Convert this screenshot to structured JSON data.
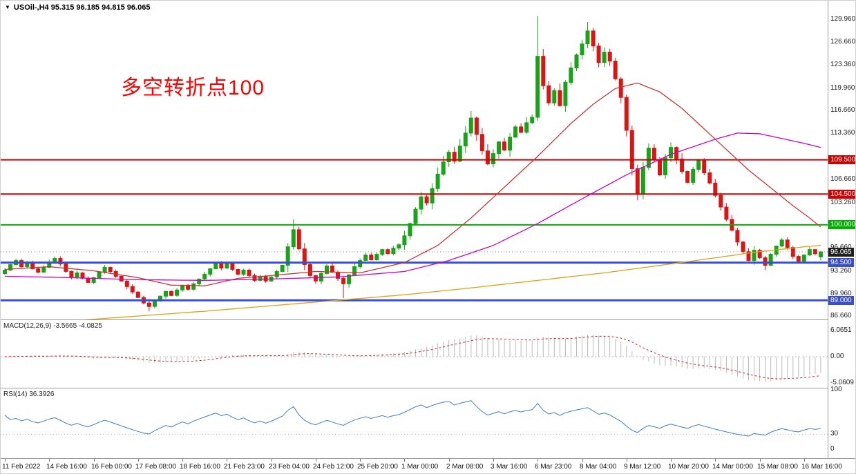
{
  "chart_window": {
    "dropdown_icon": "▼",
    "title": "USOil-,H4 95.315 96.185 94.815 96.065"
  },
  "annotation": {
    "text": "多空转折点100",
    "color": "#ff0000"
  },
  "colors": {
    "bull": "#18a318",
    "bear": "#dd1414",
    "ma_fast": "#cc3333",
    "ma_mid": "#cc00cc",
    "ma_slow": "#e0a018",
    "hline_red": "#cc0000",
    "hline_green": "#00b200",
    "hline_blue": "#3a50c8",
    "price_badge": "#1f1f1f",
    "macd_hist": "#b8b8b8",
    "macd_signal": "#cc2222",
    "rsi_line": "#3f7cc0",
    "level_dash": "#b4b4b4",
    "axis_text": "#1a1a1a",
    "border": "#9a9a9a"
  },
  "chart_data": {
    "type": "candlestick",
    "symbol": "USOil-",
    "timeframe": "H4",
    "ohlc": {
      "open": 95.315,
      "high": 96.185,
      "low": 94.815,
      "close": 96.065
    },
    "price_axis": {
      "min": 86.2,
      "max": 130.7,
      "labels": [
        "129.960",
        "126.660",
        "123.360",
        "119.960",
        "116.660",
        "113.360",
        "106.660",
        "103.260",
        "96.660",
        "93.260",
        "89.960",
        "86.660"
      ]
    },
    "levels": [
      {
        "value": 109.5,
        "label": "109.500",
        "color_key": "hline_red",
        "width": 2
      },
      {
        "value": 104.5,
        "label": "104.500",
        "color_key": "hline_red",
        "width": 2
      },
      {
        "value": 100.0,
        "label": "100.000",
        "color_key": "hline_green",
        "width": 2
      },
      {
        "value": 94.5,
        "label": "94.500",
        "color_key": "hline_blue",
        "width": 3
      },
      {
        "value": 89.0,
        "label": "89.000",
        "color_key": "hline_blue",
        "width": 3
      }
    ],
    "current_price": {
      "value": 96.065,
      "label": "96.065"
    },
    "x_labels": [
      "11 Feb 2022",
      "14 Feb 16:00",
      "16 Feb 00:00",
      "17 Feb 08:00",
      "18 Feb 16:00",
      "21 Feb 23:00",
      "23 Feb 04:00",
      "24 Feb 12:00",
      "25 Feb 20:00",
      "1 Mar 00:00",
      "2 Mar 08:00",
      "3 Mar 16:00",
      "6 Mar 23:00",
      "8 Mar 04:00",
      "9 Mar 12:00",
      "10 Mar 20:00",
      "14 Mar 00:00",
      "15 Mar 08:00",
      "16 Mar 16:00"
    ],
    "bars_per_label": 8,
    "closes": [
      93.4,
      94.2,
      94.8,
      93.9,
      94.5,
      93.6,
      93.1,
      93.8,
      94.6,
      95.1,
      94.3,
      93.2,
      92.4,
      93.0,
      92.2,
      91.6,
      92.3,
      93.1,
      93.8,
      93.2,
      92.5,
      91.8,
      91.0,
      90.2,
      89.4,
      88.6,
      88.1,
      88.9,
      89.6,
      90.3,
      89.7,
      90.5,
      91.2,
      90.6,
      91.4,
      92.1,
      92.8,
      93.6,
      94.4,
      93.7,
      94.3,
      93.5,
      92.8,
      93.4,
      92.6,
      91.9,
      92.5,
      91.8,
      92.4,
      93.2,
      94.1,
      96.8,
      99.3,
      96.5,
      94.2,
      92.6,
      91.8,
      92.9,
      94.0,
      93.1,
      92.2,
      91.4,
      92.7,
      93.9,
      94.8,
      95.6,
      94.9,
      95.7,
      96.4,
      95.8,
      96.6,
      97.1,
      98.4,
      100.2,
      102.3,
      104.1,
      103.2,
      105.3,
      107.4,
      109.2,
      110.6,
      109.3,
      111.5,
      113.4,
      115.6,
      113.2,
      110.8,
      108.9,
      110.4,
      112.1,
      110.9,
      112.8,
      114.3,
      113.5,
      114.9,
      115.7,
      124.6,
      120.3,
      117.8,
      119.6,
      117.4,
      120.8,
      122.9,
      124.8,
      126.4,
      128.3,
      126.1,
      123.7,
      125.2,
      123.9,
      121.3,
      118.6,
      113.8,
      108.2,
      104.6,
      108.4,
      111.2,
      109.5,
      107.3,
      109.8,
      111.3,
      109.6,
      107.8,
      106.2,
      108.1,
      109.4,
      107.6,
      106.1,
      104.3,
      102.6,
      100.8,
      99.2,
      97.5,
      96.1,
      94.8,
      96.3,
      95.2,
      94.1,
      95.7,
      96.9,
      97.8,
      96.7,
      95.4,
      94.7,
      95.6,
      96.4,
      95.8,
      96.065
    ],
    "special_candles": {
      "26": [
        88.6,
        88.9,
        87.4,
        88.1
      ],
      "52": [
        96.8,
        100.8,
        96.4,
        99.3
      ],
      "61": [
        92.2,
        92.4,
        89.3,
        91.4
      ],
      "84": [
        113.4,
        116.6,
        112.9,
        115.6
      ],
      "96": [
        115.7,
        130.5,
        115.2,
        124.6
      ],
      "105": [
        126.4,
        129.6,
        125.8,
        128.3
      ],
      "112": [
        118.6,
        119.0,
        112.9,
        113.8
      ],
      "113": [
        113.8,
        114.5,
        107.2,
        108.2
      ],
      "114": [
        108.2,
        108.8,
        103.6,
        104.6
      ],
      "137": [
        95.2,
        95.5,
        93.4,
        94.1
      ],
      "147": [
        95.315,
        96.185,
        94.815,
        96.065
      ]
    },
    "moving_averages": [
      {
        "name": "sma-fast",
        "color_key": "ma_fast",
        "anchors": [
          [
            0,
            93.5
          ],
          [
            8,
            93.9
          ],
          [
            16,
            93.3
          ],
          [
            24,
            92.3
          ],
          [
            30,
            91.2
          ],
          [
            36,
            91.1
          ],
          [
            42,
            92.2
          ],
          [
            48,
            92.6
          ],
          [
            56,
            93.2
          ],
          [
            64,
            93.0
          ],
          [
            72,
            94.5
          ],
          [
            78,
            97.0
          ],
          [
            84,
            101.0
          ],
          [
            90,
            105.5
          ],
          [
            96,
            110.0
          ],
          [
            102,
            114.8
          ],
          [
            106,
            117.6
          ],
          [
            110,
            119.9
          ],
          [
            114,
            120.7
          ],
          [
            118,
            119.4
          ],
          [
            122,
            117.0
          ],
          [
            126,
            114.0
          ],
          [
            130,
            111.0
          ],
          [
            134,
            108.0
          ],
          [
            138,
            105.4
          ],
          [
            142,
            102.8
          ],
          [
            145,
            101.0
          ],
          [
            147,
            99.7
          ]
        ]
      },
      {
        "name": "sma-mid",
        "color_key": "ma_mid",
        "anchors": [
          [
            0,
            92.5
          ],
          [
            12,
            92.3
          ],
          [
            24,
            92.0
          ],
          [
            36,
            91.9
          ],
          [
            48,
            92.1
          ],
          [
            60,
            92.4
          ],
          [
            72,
            93.2
          ],
          [
            80,
            94.8
          ],
          [
            88,
            97.0
          ],
          [
            96,
            100.2
          ],
          [
            104,
            103.8
          ],
          [
            112,
            107.3
          ],
          [
            120,
            110.3
          ],
          [
            128,
            112.5
          ],
          [
            132,
            113.4
          ],
          [
            136,
            113.3
          ],
          [
            140,
            112.6
          ],
          [
            144,
            111.9
          ],
          [
            147,
            111.3
          ]
        ]
      },
      {
        "name": "sma-slow",
        "color_key": "ma_slow",
        "anchors": [
          [
            0,
            85.4
          ],
          [
            12,
            86.0
          ],
          [
            24,
            86.7
          ],
          [
            36,
            87.4
          ],
          [
            48,
            88.2
          ],
          [
            60,
            89.0
          ],
          [
            72,
            89.8
          ],
          [
            84,
            90.8
          ],
          [
            96,
            91.9
          ],
          [
            108,
            93.0
          ],
          [
            120,
            94.3
          ],
          [
            128,
            95.2
          ],
          [
            136,
            96.1
          ],
          [
            144,
            96.8
          ],
          [
            147,
            97.0
          ]
        ]
      }
    ],
    "macd": {
      "label": "MACD(12,26,9) -3.5665 -4.0825",
      "fast": 12,
      "slow": 26,
      "signal": 9,
      "axis": {
        "top_label": "6.0651",
        "top_value": 6.0651,
        "zero_label": "0.00",
        "bottom_label": "-5.0609",
        "bottom_value": -5.0609
      }
    },
    "rsi": {
      "label": "RSI(14) 36.3926",
      "period": 14,
      "levels": [
        30
      ],
      "axis_labels": [
        {
          "v": 100,
          "t": "100"
        },
        {
          "v": 30,
          "t": "30"
        },
        {
          "v": 0,
          "t": "0"
        }
      ]
    }
  }
}
